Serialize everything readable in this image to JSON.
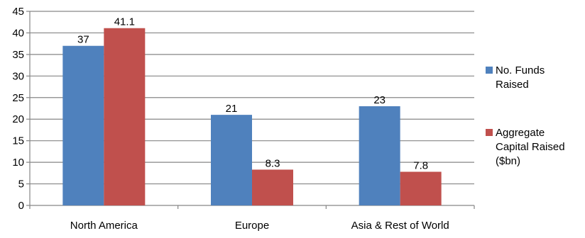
{
  "chart_data": {
    "type": "bar",
    "categories": [
      "North America",
      "Europe",
      "Asia & Rest of World"
    ],
    "series": [
      {
        "name": "No. Funds Raised",
        "values": [
          37,
          21,
          23
        ],
        "color": "#4f81bd"
      },
      {
        "name": "Aggregate Capital Raised ($bn)",
        "values": [
          41.1,
          8.3,
          7.8
        ],
        "color": "#c0504d"
      }
    ],
    "data_labels": [
      [
        "37",
        "21",
        "23"
      ],
      [
        "41.1",
        "8.3",
        "7.8"
      ]
    ],
    "y_ticks": [
      "0",
      "5",
      "10",
      "15",
      "20",
      "25",
      "30",
      "35",
      "40",
      "45"
    ],
    "ylim": [
      0,
      45
    ],
    "grid": true,
    "legend_position": "right",
    "legend_lines": [
      [
        "No. Funds",
        "Raised"
      ],
      [
        "Aggregate",
        "Capital Raised",
        "($bn)"
      ]
    ],
    "title": "",
    "xlabel": "",
    "ylabel": ""
  }
}
